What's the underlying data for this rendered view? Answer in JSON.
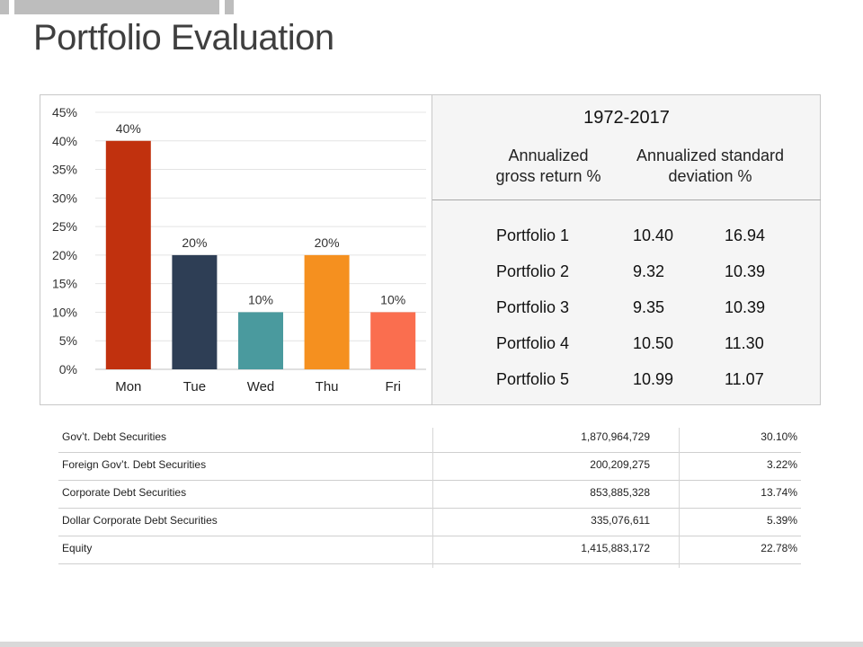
{
  "page": {
    "title": "Portfolio Evaluation"
  },
  "chart_data": {
    "type": "bar",
    "categories": [
      "Mon",
      "Tue",
      "Wed",
      "Thu",
      "Fri"
    ],
    "values": [
      40,
      20,
      10,
      20,
      10
    ],
    "data_labels": [
      "40%",
      "20%",
      "10%",
      "20%",
      "10%"
    ],
    "colors": [
      "#c1310e",
      "#2e3e55",
      "#4a9a9e",
      "#f5901f",
      "#fa6e4f"
    ],
    "ylim": [
      0,
      45
    ],
    "yticks": [
      0,
      5,
      10,
      15,
      20,
      25,
      30,
      35,
      40,
      45
    ],
    "ytick_labels": [
      "0%",
      "5%",
      "10%",
      "15%",
      "20%",
      "25%",
      "30%",
      "35%",
      "40%",
      "45%"
    ],
    "title": "",
    "xlabel": "",
    "ylabel": "",
    "grid": true
  },
  "returns": {
    "period": "1972-2017",
    "col1_line1": "Annualized",
    "col1_line2": "gross return %",
    "col2_line1": "Annualized standard",
    "col2_line2": "deviation %",
    "rows": [
      {
        "name": "Portfolio 1",
        "ret": "10.40",
        "dev": "16.94"
      },
      {
        "name": "Portfolio 2",
        "ret": "9.32",
        "dev": "10.39"
      },
      {
        "name": "Portfolio 3",
        "ret": "9.35",
        "dev": "10.39"
      },
      {
        "name": "Portfolio 4",
        "ret": "10.50",
        "dev": "11.30"
      },
      {
        "name": "Portfolio 5",
        "ret": "10.99",
        "dev": "11.07"
      }
    ]
  },
  "holdings": [
    {
      "name": "Gov’t. Debt Securities",
      "amount": "1,870,964,729",
      "pct": "30.10%"
    },
    {
      "name": "Foreign Gov’t. Debt Securities",
      "amount": "200,209,275",
      "pct": "3.22%"
    },
    {
      "name": "Corporate Debt Securities",
      "amount": "853,885,328",
      "pct": "13.74%"
    },
    {
      "name": "Dollar Corporate Debt Securities",
      "amount": "335,076,611",
      "pct": "5.39%"
    },
    {
      "name": "Equity",
      "amount": "1,415,883,172",
      "pct": "22.78%"
    }
  ]
}
